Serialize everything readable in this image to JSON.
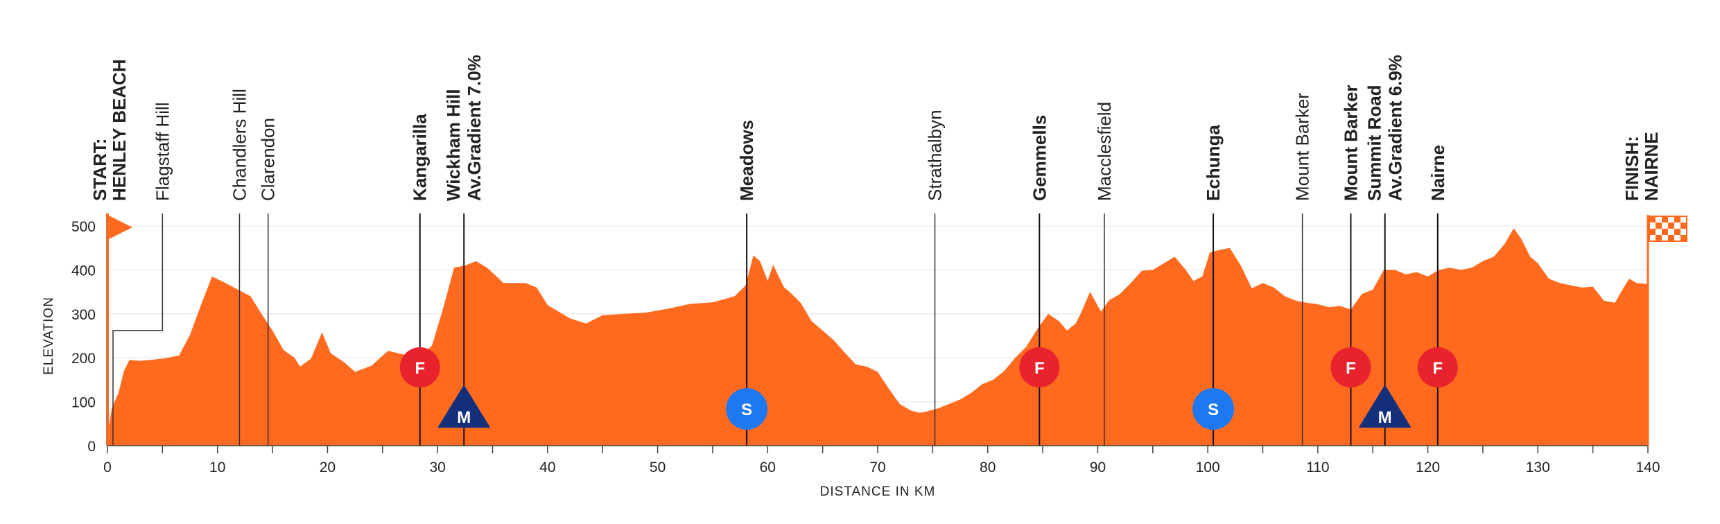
{
  "chart_data": {
    "type": "area",
    "xlabel": "DISTANCE IN KM",
    "ylabel": "ELEVATION",
    "xlim": [
      0,
      140
    ],
    "ylim": [
      0,
      500
    ],
    "x_ticks": [
      0,
      10,
      20,
      30,
      40,
      50,
      60,
      70,
      80,
      90,
      100,
      110,
      120,
      130,
      140
    ],
    "y_ticks": [
      0,
      100,
      200,
      300,
      400,
      500
    ],
    "grid": "horizontal",
    "colors": {
      "fill": "#FF6A1F",
      "sprint": "#1E78F0",
      "feed": "#E8232E",
      "kom": "#14307A",
      "text": "#222222"
    },
    "profile": {
      "x": [
        0,
        0.4,
        1,
        1.5,
        2,
        3,
        5,
        6.5,
        7.5,
        8.5,
        9.5,
        10.5,
        11.5,
        13,
        14,
        15,
        16,
        17,
        17.5,
        18.5,
        19.5,
        20.3,
        21.5,
        22.5,
        24,
        25.5,
        27,
        28.5,
        29.5,
        30.5,
        31.5,
        32.5,
        33.5,
        34.5,
        36,
        38,
        39,
        40,
        41,
        42,
        43.5,
        45,
        47,
        49,
        51,
        53,
        55,
        57,
        58,
        58.7,
        59.3,
        60,
        60.5,
        61,
        61.5,
        62,
        63,
        64,
        65,
        66,
        67,
        68,
        69,
        70,
        71,
        72,
        73,
        73.8,
        74.5,
        75.5,
        76.5,
        77.5,
        78.5,
        79.5,
        80.5,
        81.5,
        82.5,
        83.5,
        84.5,
        85.5,
        86.5,
        87.2,
        88,
        88.5,
        89.3,
        90.3,
        91,
        92,
        93,
        94,
        95,
        96,
        97,
        98,
        98.7,
        99.5,
        100.2,
        101,
        102,
        103,
        104,
        105,
        106,
        107,
        108,
        109,
        110,
        111,
        112,
        113,
        114,
        115,
        116,
        117,
        118,
        119,
        120,
        121,
        122,
        123,
        124,
        125,
        126,
        127,
        127.8,
        128.5,
        129.3,
        130,
        131,
        132,
        133,
        134,
        135,
        136,
        137,
        137.8,
        138.3,
        139,
        140
      ],
      "elevation": [
        25,
        85,
        120,
        170,
        195,
        193,
        198,
        205,
        252,
        320,
        385,
        373,
        360,
        340,
        300,
        262,
        218,
        200,
        180,
        198,
        258,
        210,
        190,
        168,
        182,
        216,
        207,
        205,
        228,
        312,
        405,
        410,
        420,
        405,
        370,
        370,
        360,
        320,
        305,
        290,
        278,
        297,
        300,
        303,
        312,
        323,
        326,
        340,
        365,
        433,
        420,
        375,
        412,
        385,
        360,
        350,
        325,
        283,
        262,
        240,
        212,
        185,
        180,
        168,
        130,
        95,
        80,
        75,
        78,
        85,
        95,
        105,
        120,
        140,
        150,
        170,
        200,
        225,
        265,
        300,
        283,
        262,
        278,
        303,
        350,
        305,
        330,
        345,
        370,
        398,
        400,
        415,
        430,
        400,
        375,
        385,
        440,
        445,
        450,
        410,
        358,
        370,
        360,
        340,
        330,
        325,
        322,
        315,
        318,
        310,
        345,
        355,
        400,
        400,
        390,
        395,
        385,
        400,
        405,
        400,
        405,
        420,
        430,
        460,
        495,
        470,
        430,
        415,
        380,
        370,
        365,
        360,
        362,
        330,
        325,
        360,
        380,
        370,
        368,
        372
      ]
    },
    "locations": [
      {
        "km": 0,
        "lines": [
          "START:",
          "HENLEY BEACH"
        ],
        "bold": true
      },
      {
        "km": 5,
        "lines": [
          "Flagstaff Hill"
        ],
        "bold": false
      },
      {
        "km": 12,
        "lines": [
          "Chandlers Hill"
        ],
        "bold": false
      },
      {
        "km": 14.6,
        "lines": [
          "Clarendon"
        ],
        "bold": false
      },
      {
        "km": 28.4,
        "lines": [
          "Kangarilla"
        ],
        "bold": true
      },
      {
        "km": 32.4,
        "lines": [
          "Wickham Hill",
          "Av.Gradient 7.0%"
        ],
        "bold": true
      },
      {
        "km": 58.1,
        "lines": [
          "Meadows"
        ],
        "bold": true
      },
      {
        "km": 75.2,
        "lines": [
          "Strathalbyn"
        ],
        "bold": false
      },
      {
        "km": 84.7,
        "lines": [
          "Gemmells"
        ],
        "bold": true
      },
      {
        "km": 90.6,
        "lines": [
          "Macclesfield"
        ],
        "bold": false
      },
      {
        "km": 100.5,
        "lines": [
          "Echunga"
        ],
        "bold": true
      },
      {
        "km": 108.6,
        "lines": [
          "Mount Barker"
        ],
        "bold": false
      },
      {
        "km": 113,
        "lines": [
          "Mount Barker"
        ],
        "bold": true
      },
      {
        "km": 116.1,
        "lines": [
          "Summit Road",
          "Av.Gradient 6.9%"
        ],
        "bold": true
      },
      {
        "km": 120.9,
        "lines": [
          "Nairne"
        ],
        "bold": true
      },
      {
        "km": 140,
        "lines": [
          "FINISH:",
          "NAIRNE"
        ],
        "bold": true
      }
    ],
    "markers": [
      {
        "km": 28.4,
        "type": "feed",
        "letter": "F"
      },
      {
        "km": 32.4,
        "type": "kom",
        "letter": "M"
      },
      {
        "km": 58.1,
        "type": "sprint",
        "letter": "S"
      },
      {
        "km": 84.7,
        "type": "feed",
        "letter": "F"
      },
      {
        "km": 100.5,
        "type": "sprint",
        "letter": "S"
      },
      {
        "km": 113,
        "type": "feed",
        "letter": "F"
      },
      {
        "km": 116.1,
        "type": "kom",
        "letter": "M"
      },
      {
        "km": 120.9,
        "type": "feed",
        "letter": "F"
      }
    ]
  }
}
